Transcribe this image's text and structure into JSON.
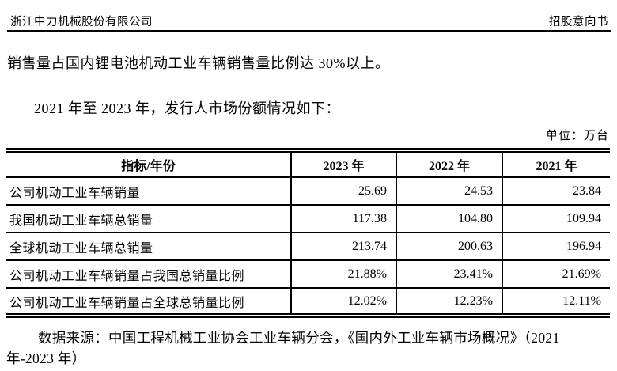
{
  "header": {
    "company": "浙江中力机械股份有限公司",
    "doc_type": "招股意向书"
  },
  "content": {
    "paragraph_1": "销售量占国内锂电池机动工业车辆销售量比例达 30%以上。",
    "paragraph_2": "2021 年至 2023 年，发行人市场份额情况如下：",
    "unit_label": "单位：万台"
  },
  "table": {
    "columns": [
      "指标/年份",
      "2023 年",
      "2022 年",
      "2021 年"
    ],
    "rows": [
      {
        "label": "公司机动工业车辆销量",
        "values": [
          "25.69",
          "24.53",
          "23.84"
        ]
      },
      {
        "label": "我国机动工业车辆总销量",
        "values": [
          "117.38",
          "104.80",
          "109.94"
        ]
      },
      {
        "label": "全球机动工业车辆总销量",
        "values": [
          "213.74",
          "200.63",
          "196.94"
        ]
      },
      {
        "label": "公司机动工业车辆销量占我国总销量比例",
        "values": [
          "21.88%",
          "23.41%",
          "21.69%"
        ]
      },
      {
        "label": "公司机动工业车辆销量占全球总销量比例",
        "values": [
          "12.02%",
          "12.23%",
          "12.11%"
        ]
      }
    ]
  },
  "source_note": {
    "line1": "数据来源：中国工程机械工业协会工业车辆分会，《国内外工业车辆市场概况》（2021",
    "line2": "年-2023 年）"
  }
}
